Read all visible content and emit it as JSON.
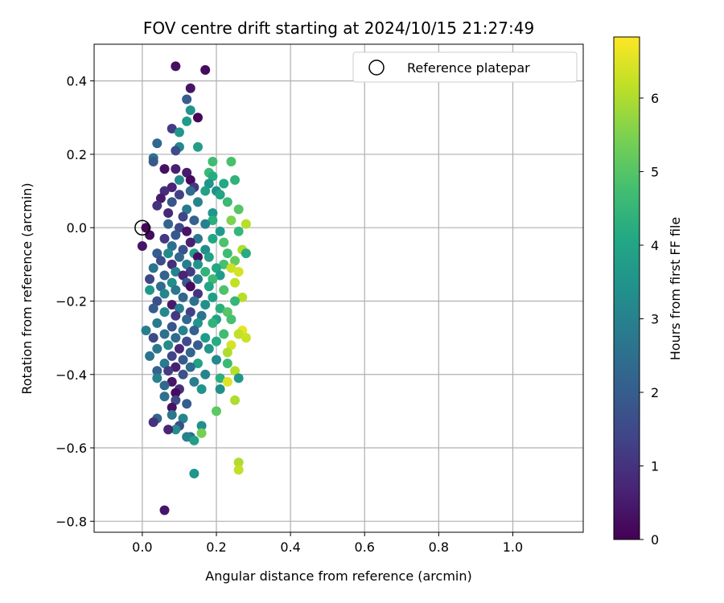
{
  "chart_data": {
    "type": "scatter",
    "title": "FOV centre drift starting at 2024/10/15 21:27:49",
    "xlabel": "Angular distance from reference (arcmin)",
    "ylabel": "Rotation from reference (arcmin)",
    "xlim": [
      -0.13,
      1.19
    ],
    "ylim": [
      -0.83,
      0.5
    ],
    "xticks": [
      0.0,
      0.2,
      0.4,
      0.6,
      0.8,
      1.0
    ],
    "xtick_labels": [
      "0.0",
      "0.2",
      "0.4",
      "0.6",
      "0.8",
      "1.0"
    ],
    "yticks": [
      0.4,
      0.2,
      0.0,
      -0.2,
      -0.4,
      -0.6,
      -0.8
    ],
    "ytick_labels": [
      "0.4",
      "0.2",
      "0.0",
      "−0.2",
      "−0.4",
      "−0.6",
      "−0.8"
    ],
    "grid": true,
    "legend": {
      "position": "top-right",
      "entries": [
        "Reference platepar"
      ]
    },
    "reference_point": {
      "x": 0.0,
      "y": 0.0
    },
    "colorbar": {
      "label": "Hours from first FF file",
      "colormap": "viridis",
      "range": [
        0,
        6.83
      ],
      "ticks": [
        0,
        1,
        2,
        3,
        4,
        5,
        6
      ],
      "tick_labels": [
        "0",
        "1",
        "2",
        "3",
        "4",
        "5",
        "6"
      ]
    },
    "points": [
      {
        "x": 0.09,
        "y": 0.44,
        "h": 0.3
      },
      {
        "x": 0.17,
        "y": 0.43,
        "h": 0.2
      },
      {
        "x": 0.13,
        "y": 0.38,
        "h": 0.4
      },
      {
        "x": 0.12,
        "y": 0.35,
        "h": 2.0
      },
      {
        "x": 0.13,
        "y": 0.32,
        "h": 3.5
      },
      {
        "x": 0.15,
        "y": 0.3,
        "h": 0.1
      },
      {
        "x": 0.12,
        "y": 0.29,
        "h": 3.7
      },
      {
        "x": 0.08,
        "y": 0.27,
        "h": 1.2
      },
      {
        "x": 0.1,
        "y": 0.26,
        "h": 3.6
      },
      {
        "x": 0.04,
        "y": 0.23,
        "h": 2.3
      },
      {
        "x": 0.1,
        "y": 0.22,
        "h": 3.2
      },
      {
        "x": 0.15,
        "y": 0.22,
        "h": 3.8
      },
      {
        "x": 0.09,
        "y": 0.21,
        "h": 1.6
      },
      {
        "x": 0.03,
        "y": 0.19,
        "h": 2.6
      },
      {
        "x": 0.03,
        "y": 0.18,
        "h": 1.9
      },
      {
        "x": 0.19,
        "y": 0.18,
        "h": 4.7
      },
      {
        "x": 0.24,
        "y": 0.18,
        "h": 4.8
      },
      {
        "x": 0.06,
        "y": 0.16,
        "h": 0.3
      },
      {
        "x": 0.09,
        "y": 0.16,
        "h": 0.6
      },
      {
        "x": 0.12,
        "y": 0.15,
        "h": 0.5
      },
      {
        "x": 0.18,
        "y": 0.15,
        "h": 4.6
      },
      {
        "x": 0.19,
        "y": 0.14,
        "h": 4.2
      },
      {
        "x": 0.13,
        "y": 0.13,
        "h": 0.2
      },
      {
        "x": 0.1,
        "y": 0.13,
        "h": 3.3
      },
      {
        "x": 0.25,
        "y": 0.13,
        "h": 4.4
      },
      {
        "x": 0.22,
        "y": 0.12,
        "h": 4.1
      },
      {
        "x": 0.18,
        "y": 0.12,
        "h": 3.5
      },
      {
        "x": 0.08,
        "y": 0.11,
        "h": 0.7
      },
      {
        "x": 0.14,
        "y": 0.11,
        "h": 1.1
      },
      {
        "x": 0.06,
        "y": 0.1,
        "h": 0.9
      },
      {
        "x": 0.13,
        "y": 0.1,
        "h": 2.4
      },
      {
        "x": 0.17,
        "y": 0.1,
        "h": 3.9
      },
      {
        "x": 0.2,
        "y": 0.1,
        "h": 3.4
      },
      {
        "x": 0.21,
        "y": 0.09,
        "h": 4.0
      },
      {
        "x": 0.1,
        "y": 0.09,
        "h": 1.3
      },
      {
        "x": 0.05,
        "y": 0.08,
        "h": 0.5
      },
      {
        "x": 0.15,
        "y": 0.07,
        "h": 3.1
      },
      {
        "x": 0.23,
        "y": 0.07,
        "h": 4.6
      },
      {
        "x": 0.08,
        "y": 0.07,
        "h": 1.8
      },
      {
        "x": 0.04,
        "y": 0.06,
        "h": 1.0
      },
      {
        "x": 0.12,
        "y": 0.05,
        "h": 2.8
      },
      {
        "x": 0.26,
        "y": 0.05,
        "h": 5.0
      },
      {
        "x": 0.07,
        "y": 0.04,
        "h": 0.8
      },
      {
        "x": 0.19,
        "y": 0.04,
        "h": 3.6
      },
      {
        "x": 0.11,
        "y": 0.03,
        "h": 1.4
      },
      {
        "x": 0.24,
        "y": 0.02,
        "h": 5.5
      },
      {
        "x": 0.14,
        "y": 0.02,
        "h": 2.1
      },
      {
        "x": 0.19,
        "y": 0.02,
        "h": 4.3
      },
      {
        "x": 0.07,
        "y": 0.01,
        "h": 2.2
      },
      {
        "x": 0.28,
        "y": 0.01,
        "h": 6.1
      },
      {
        "x": 0.17,
        "y": 0.01,
        "h": 3.0
      },
      {
        "x": 0.01,
        "y": 0.0,
        "h": 0.1
      },
      {
        "x": 0.1,
        "y": 0.0,
        "h": 1.5
      },
      {
        "x": 0.26,
        "y": -0.01,
        "h": 4.5
      },
      {
        "x": 0.12,
        "y": -0.01,
        "h": 0.4
      },
      {
        "x": 0.21,
        "y": -0.01,
        "h": 3.7
      },
      {
        "x": 0.02,
        "y": -0.02,
        "h": 0.2
      },
      {
        "x": 0.09,
        "y": -0.02,
        "h": 1.9
      },
      {
        "x": 0.15,
        "y": -0.03,
        "h": 2.7
      },
      {
        "x": 0.19,
        "y": -0.03,
        "h": 4.0
      },
      {
        "x": 0.06,
        "y": -0.03,
        "h": 1.1
      },
      {
        "x": 0.13,
        "y": -0.04,
        "h": 0.6
      },
      {
        "x": 0.22,
        "y": -0.04,
        "h": 4.9
      },
      {
        "x": 0.08,
        "y": -0.05,
        "h": 2.5
      },
      {
        "x": 0.0,
        "y": -0.05,
        "h": 0.4
      },
      {
        "x": 0.17,
        "y": -0.06,
        "h": 3.3
      },
      {
        "x": 0.11,
        "y": -0.06,
        "h": 1.7
      },
      {
        "x": 0.27,
        "y": -0.06,
        "h": 6.0
      },
      {
        "x": 0.04,
        "y": -0.07,
        "h": 2.0
      },
      {
        "x": 0.14,
        "y": -0.07,
        "h": 3.8
      },
      {
        "x": 0.23,
        "y": -0.07,
        "h": 4.7
      },
      {
        "x": 0.07,
        "y": -0.07,
        "h": 3.2
      },
      {
        "x": 0.28,
        "y": -0.07,
        "h": 4.2
      },
      {
        "x": 0.15,
        "y": -0.08,
        "h": 0.3
      },
      {
        "x": 0.1,
        "y": -0.08,
        "h": 2.3
      },
      {
        "x": 0.18,
        "y": -0.08,
        "h": 3.9
      },
      {
        "x": 0.25,
        "y": -0.09,
        "h": 5.2
      },
      {
        "x": 0.05,
        "y": -0.09,
        "h": 1.6
      },
      {
        "x": 0.12,
        "y": -0.1,
        "h": 2.9
      },
      {
        "x": 0.22,
        "y": -0.1,
        "h": 4.8
      },
      {
        "x": 0.08,
        "y": -0.1,
        "h": 0.9
      },
      {
        "x": 0.15,
        "y": -0.1,
        "h": 3.5
      },
      {
        "x": 0.2,
        "y": -0.11,
        "h": 4.1
      },
      {
        "x": 0.03,
        "y": -0.11,
        "h": 2.6
      },
      {
        "x": 0.24,
        "y": -0.11,
        "h": 6.3
      },
      {
        "x": 0.13,
        "y": -0.12,
        "h": 1.2
      },
      {
        "x": 0.09,
        "y": -0.12,
        "h": 3.0
      },
      {
        "x": 0.17,
        "y": -0.12,
        "h": 4.4
      },
      {
        "x": 0.26,
        "y": -0.12,
        "h": 6.4
      },
      {
        "x": 0.06,
        "y": -0.13,
        "h": 2.1
      },
      {
        "x": 0.21,
        "y": -0.13,
        "h": 3.7
      },
      {
        "x": 0.11,
        "y": -0.13,
        "h": 0.7
      },
      {
        "x": 0.02,
        "y": -0.14,
        "h": 1.4
      },
      {
        "x": 0.15,
        "y": -0.14,
        "h": 2.8
      },
      {
        "x": 0.19,
        "y": -0.14,
        "h": 4.6
      },
      {
        "x": 0.08,
        "y": -0.15,
        "h": 3.3
      },
      {
        "x": 0.25,
        "y": -0.15,
        "h": 6.2
      },
      {
        "x": 0.12,
        "y": -0.15,
        "h": 1.9
      },
      {
        "x": 0.05,
        "y": -0.16,
        "h": 2.4
      },
      {
        "x": 0.18,
        "y": -0.16,
        "h": 4.0
      },
      {
        "x": 0.13,
        "y": -0.16,
        "h": 0.2
      },
      {
        "x": 0.09,
        "y": -0.17,
        "h": 2.7
      },
      {
        "x": 0.02,
        "y": -0.17,
        "h": 3.6
      },
      {
        "x": 0.22,
        "y": -0.17,
        "h": 4.9
      },
      {
        "x": 0.15,
        "y": -0.18,
        "h": 1.0
      },
      {
        "x": 0.06,
        "y": -0.18,
        "h": 3.1
      },
      {
        "x": 0.27,
        "y": -0.19,
        "h": 6.1
      },
      {
        "x": 0.11,
        "y": -0.19,
        "h": 2.2
      },
      {
        "x": 0.19,
        "y": -0.19,
        "h": 3.8
      },
      {
        "x": 0.04,
        "y": -0.2,
        "h": 1.7
      },
      {
        "x": 0.14,
        "y": -0.2,
        "h": 2.5
      },
      {
        "x": 0.25,
        "y": -0.2,
        "h": 4.5
      },
      {
        "x": 0.08,
        "y": -0.21,
        "h": 0.5
      },
      {
        "x": 0.17,
        "y": -0.21,
        "h": 3.4
      },
      {
        "x": 0.1,
        "y": -0.22,
        "h": 2.9
      },
      {
        "x": 0.21,
        "y": -0.22,
        "h": 4.3
      },
      {
        "x": 0.03,
        "y": -0.22,
        "h": 2.0
      },
      {
        "x": 0.13,
        "y": -0.23,
        "h": 1.3
      },
      {
        "x": 0.23,
        "y": -0.23,
        "h": 5.0
      },
      {
        "x": 0.06,
        "y": -0.23,
        "h": 3.2
      },
      {
        "x": 0.16,
        "y": -0.24,
        "h": 2.6
      },
      {
        "x": 0.09,
        "y": -0.24,
        "h": 1.1
      },
      {
        "x": 0.2,
        "y": -0.25,
        "h": 3.9
      },
      {
        "x": 0.12,
        "y": -0.25,
        "h": 2.3
      },
      {
        "x": 0.24,
        "y": -0.25,
        "h": 4.8
      },
      {
        "x": 0.04,
        "y": -0.26,
        "h": 2.8
      },
      {
        "x": 0.15,
        "y": -0.26,
        "h": 3.5
      },
      {
        "x": 0.19,
        "y": -0.26,
        "h": 4.4
      },
      {
        "x": 0.08,
        "y": -0.27,
        "h": 1.8
      },
      {
        "x": 0.27,
        "y": -0.28,
        "h": 6.6
      },
      {
        "x": 0.11,
        "y": -0.28,
        "h": 3.0
      },
      {
        "x": 0.01,
        "y": -0.28,
        "h": 2.9
      },
      {
        "x": 0.14,
        "y": -0.28,
        "h": 2.1
      },
      {
        "x": 0.22,
        "y": -0.29,
        "h": 4.7
      },
      {
        "x": 0.06,
        "y": -0.29,
        "h": 2.5
      },
      {
        "x": 0.26,
        "y": -0.29,
        "h": 6.2
      },
      {
        "x": 0.03,
        "y": -0.3,
        "h": 1.5
      },
      {
        "x": 0.17,
        "y": -0.3,
        "h": 3.7
      },
      {
        "x": 0.09,
        "y": -0.3,
        "h": 2.4
      },
      {
        "x": 0.28,
        "y": -0.3,
        "h": 6.3
      },
      {
        "x": 0.12,
        "y": -0.31,
        "h": 1.6
      },
      {
        "x": 0.2,
        "y": -0.31,
        "h": 4.2
      },
      {
        "x": 0.07,
        "y": -0.32,
        "h": 3.3
      },
      {
        "x": 0.15,
        "y": -0.32,
        "h": 2.0
      },
      {
        "x": 0.24,
        "y": -0.32,
        "h": 6.4
      },
      {
        "x": 0.1,
        "y": -0.33,
        "h": 0.8
      },
      {
        "x": 0.04,
        "y": -0.33,
        "h": 2.7
      },
      {
        "x": 0.18,
        "y": -0.33,
        "h": 3.6
      },
      {
        "x": 0.23,
        "y": -0.34,
        "h": 6.0
      },
      {
        "x": 0.13,
        "y": -0.34,
        "h": 2.2
      },
      {
        "x": 0.08,
        "y": -0.35,
        "h": 1.4
      },
      {
        "x": 0.02,
        "y": -0.35,
        "h": 2.6
      },
      {
        "x": 0.2,
        "y": -0.36,
        "h": 3.2
      },
      {
        "x": 0.11,
        "y": -0.36,
        "h": 1.9
      },
      {
        "x": 0.06,
        "y": -0.37,
        "h": 2.8
      },
      {
        "x": 0.15,
        "y": -0.37,
        "h": 3.9
      },
      {
        "x": 0.23,
        "y": -0.37,
        "h": 4.6
      },
      {
        "x": 0.09,
        "y": -0.38,
        "h": 0.6
      },
      {
        "x": 0.13,
        "y": -0.38,
        "h": 2.4
      },
      {
        "x": 0.04,
        "y": -0.39,
        "h": 2.1
      },
      {
        "x": 0.25,
        "y": -0.39,
        "h": 6.1
      },
      {
        "x": 0.07,
        "y": -0.39,
        "h": 1.2
      },
      {
        "x": 0.17,
        "y": -0.4,
        "h": 3.1
      },
      {
        "x": 0.11,
        "y": -0.4,
        "h": 1.7
      },
      {
        "x": 0.21,
        "y": -0.41,
        "h": 4.3
      },
      {
        "x": 0.04,
        "y": -0.41,
        "h": 3.0
      },
      {
        "x": 0.26,
        "y": -0.41,
        "h": 3.6
      },
      {
        "x": 0.08,
        "y": -0.42,
        "h": 0.4
      },
      {
        "x": 0.14,
        "y": -0.42,
        "h": 2.9
      },
      {
        "x": 0.23,
        "y": -0.42,
        "h": 6.5
      },
      {
        "x": 0.06,
        "y": -0.43,
        "h": 2.3
      },
      {
        "x": 0.1,
        "y": -0.44,
        "h": 0.9
      },
      {
        "x": 0.16,
        "y": -0.44,
        "h": 3.5
      },
      {
        "x": 0.21,
        "y": -0.44,
        "h": 3.4
      },
      {
        "x": 0.09,
        "y": -0.45,
        "h": 0.2
      },
      {
        "x": 0.06,
        "y": -0.46,
        "h": 2.5
      },
      {
        "x": 0.25,
        "y": -0.47,
        "h": 6.0
      },
      {
        "x": 0.09,
        "y": -0.47,
        "h": 1.5
      },
      {
        "x": 0.12,
        "y": -0.48,
        "h": 2.0
      },
      {
        "x": 0.08,
        "y": -0.49,
        "h": 0.3
      },
      {
        "x": 0.2,
        "y": -0.5,
        "h": 5.1
      },
      {
        "x": 0.08,
        "y": -0.51,
        "h": 2.7
      },
      {
        "x": 0.04,
        "y": -0.52,
        "h": 2.2
      },
      {
        "x": 0.11,
        "y": -0.52,
        "h": 3.1
      },
      {
        "x": 0.03,
        "y": -0.53,
        "h": 1.0
      },
      {
        "x": 0.1,
        "y": -0.54,
        "h": 1.6
      },
      {
        "x": 0.16,
        "y": -0.54,
        "h": 3.4
      },
      {
        "x": 0.09,
        "y": -0.55,
        "h": 3.3
      },
      {
        "x": 0.07,
        "y": -0.55,
        "h": 0.7
      },
      {
        "x": 0.16,
        "y": -0.56,
        "h": 5.4
      },
      {
        "x": 0.13,
        "y": -0.57,
        "h": 2.4
      },
      {
        "x": 0.12,
        "y": -0.57,
        "h": 3.0
      },
      {
        "x": 0.14,
        "y": -0.58,
        "h": 3.8
      },
      {
        "x": 0.26,
        "y": -0.64,
        "h": 6.0
      },
      {
        "x": 0.26,
        "y": -0.66,
        "h": 6.2
      },
      {
        "x": 0.14,
        "y": -0.67,
        "h": 3.5
      },
      {
        "x": 0.06,
        "y": -0.77,
        "h": 0.4
      }
    ]
  }
}
